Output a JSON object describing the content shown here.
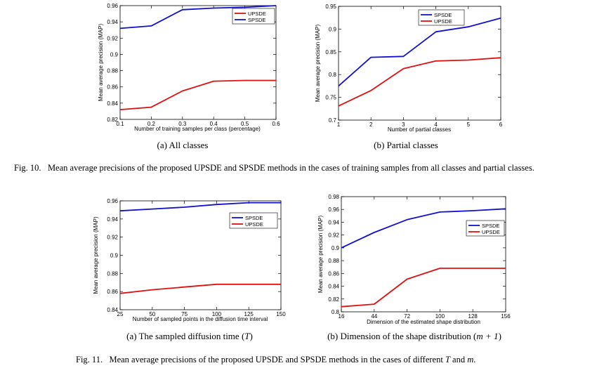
{
  "figures": [
    {
      "caption": {
        "label": "Fig. 10.",
        "text": "Mean average precisions of the proposed UPSDE and SPSDE methods in the cases of training samples from all classes and partial classes."
      },
      "subcaptions": [
        {
          "tag": "(a)",
          "text": "All classes"
        },
        {
          "tag": "(b)",
          "text": "Partial classes"
        }
      ]
    },
    {
      "caption": {
        "label": "Fig. 11.",
        "text_before": "Mean average precisions of the proposed UPSDE and SPSDE methods in the cases of different",
        "var1": "T",
        "text_mid": "and",
        "var2": "m",
        "text_after": "."
      },
      "subcaptions": [
        {
          "tag": "(a)",
          "text": "The sampled diffusion time (",
          "var": "T",
          "text_after": ")"
        },
        {
          "tag": "(b)",
          "text": "Dimension of the shape distribution (",
          "var": "m + 1",
          "text_after": ")"
        }
      ]
    }
  ],
  "colors": {
    "spsde": "#1010d0",
    "upsde": "#e01010"
  },
  "chart_data": [
    {
      "type": "line",
      "xlabel": "Number of training samples per class (percentage)",
      "ylabel": "Mean average precision (MAP)",
      "x": [
        0.1,
        0.2,
        0.3,
        0.4,
        0.5,
        0.6
      ],
      "x_ticks": [
        "0.1",
        "0.2",
        "0.3",
        "0.4",
        "0.5",
        "0.6"
      ],
      "xlim": [
        0.1,
        0.6
      ],
      "ylim": [
        0.82,
        0.96
      ],
      "y_ticks": [
        "0.82",
        "0.84",
        "0.86",
        "0.88",
        "0.9",
        "0.92",
        "0.94",
        "0.96"
      ],
      "legend_loc": "top-right",
      "series": [
        {
          "name": "UPSDE",
          "key": "upsde",
          "values": [
            0.832,
            0.835,
            0.855,
            0.867,
            0.868,
            0.868
          ]
        },
        {
          "name": "SPSDE",
          "key": "spsde",
          "values": [
            0.932,
            0.935,
            0.955,
            0.957,
            0.958,
            0.96
          ]
        }
      ]
    },
    {
      "type": "line",
      "xlabel": "Number of partial classes",
      "ylabel": "Mean average precision (MAP)",
      "x": [
        1,
        2,
        3,
        4,
        5,
        6
      ],
      "x_ticks": [
        "1",
        "2",
        "3",
        "4",
        "5",
        "6"
      ],
      "xlim": [
        1,
        6
      ],
      "ylim": [
        0.7,
        0.95
      ],
      "y_ticks": [
        "0.7",
        "0.75",
        "0.8",
        "0.85",
        "0.9",
        "0.95"
      ],
      "legend_loc": "top-left",
      "series": [
        {
          "name": "SPSDE",
          "key": "spsde",
          "values": [
            0.775,
            0.838,
            0.84,
            0.894,
            0.905,
            0.924
          ]
        },
        {
          "name": "UPSDE",
          "key": "upsde",
          "values": [
            0.731,
            0.765,
            0.813,
            0.83,
            0.832,
            0.837
          ]
        }
      ]
    },
    {
      "type": "line",
      "xlabel": "Number of sampled points in the diffusion time interval",
      "ylabel": "Mean average precision (MAP)",
      "x": [
        25,
        50,
        75,
        100,
        125,
        150
      ],
      "x_ticks": [
        "25",
        "50",
        "75",
        "100",
        "125",
        "150"
      ],
      "xlim": [
        25,
        150
      ],
      "ylim": [
        0.84,
        0.96
      ],
      "y_ticks": [
        "0.84",
        "0.86",
        "0.88",
        "0.9",
        "0.92",
        "0.94",
        "0.96"
      ],
      "legend_loc": "right",
      "series": [
        {
          "name": "SPSDE",
          "key": "spsde",
          "values": [
            0.949,
            0.951,
            0.953,
            0.956,
            0.958,
            0.958
          ]
        },
        {
          "name": "UPSDE",
          "key": "upsde",
          "values": [
            0.858,
            0.862,
            0.865,
            0.868,
            0.868,
            0.868
          ]
        }
      ]
    },
    {
      "type": "line",
      "xlabel": "Dimension of the estimated shape distribution",
      "ylabel": "Mean average precision (MAP)",
      "x": [
        16,
        44,
        72,
        100,
        128,
        156
      ],
      "x_ticks": [
        "16",
        "44",
        "72",
        "100",
        "128",
        "156"
      ],
      "xlim": [
        16,
        156
      ],
      "ylim": [
        0.8,
        0.98
      ],
      "y_ticks": [
        "0.8",
        "0.82",
        "0.84",
        "0.86",
        "0.88",
        "0.9",
        "0.92",
        "0.94",
        "0.96",
        "0.98"
      ],
      "legend_loc": "right",
      "series": [
        {
          "name": "SPSDE",
          "key": "spsde",
          "values": [
            0.9,
            0.924,
            0.944,
            0.956,
            0.958,
            0.961
          ]
        },
        {
          "name": "UPSDE",
          "key": "upsde",
          "values": [
            0.808,
            0.812,
            0.851,
            0.868,
            0.868,
            0.868
          ]
        }
      ]
    }
  ]
}
